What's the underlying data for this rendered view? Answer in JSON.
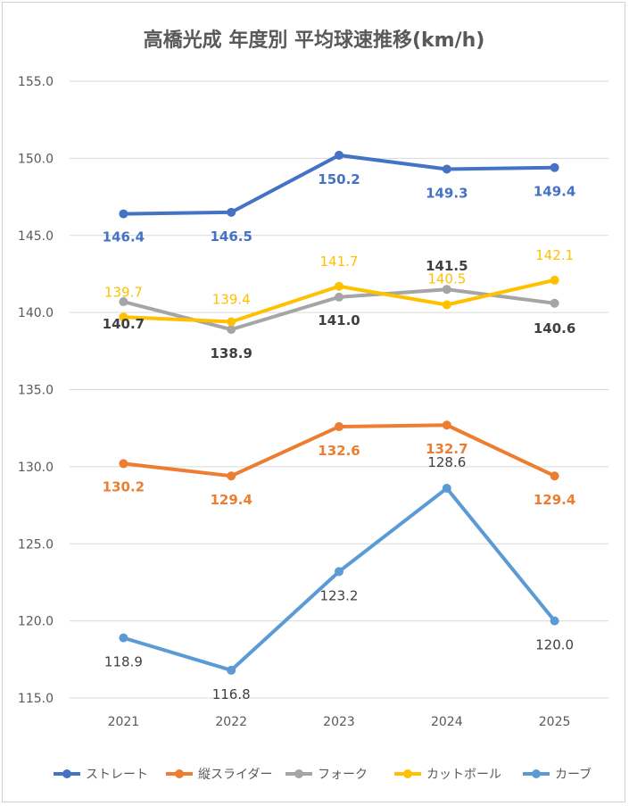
{
  "chart_data": {
    "type": "line",
    "title": "高橋光成 年度別 平均球速推移(km/h)",
    "categories": [
      "2021",
      "2022",
      "2023",
      "2024",
      "2025"
    ],
    "ylim": [
      115.0,
      155.0
    ],
    "yticks": [
      "115.0",
      "120.0",
      "125.0",
      "130.0",
      "135.0",
      "140.0",
      "145.0",
      "150.0",
      "155.0"
    ],
    "grid": true,
    "legend_position": "bottom",
    "series": [
      {
        "name": "ストレート",
        "color": "#4472C4",
        "values": [
          146.4,
          146.5,
          150.2,
          149.3,
          149.4
        ],
        "labels": [
          "146.4",
          "146.5",
          "150.2",
          "149.3",
          "149.4"
        ]
      },
      {
        "name": "縦スライダー",
        "color": "#ED7D31",
        "values": [
          130.2,
          129.4,
          132.6,
          132.7,
          129.4
        ],
        "labels": [
          "130.2",
          "129.4",
          "132.6",
          "132.7",
          "129.4"
        ]
      },
      {
        "name": "フォーク",
        "color": "#A5A5A5",
        "values": [
          140.7,
          138.9,
          141.0,
          141.5,
          140.6
        ],
        "labels": [
          "140.7",
          "138.9",
          "141.0",
          "141.5",
          "140.6"
        ]
      },
      {
        "name": "カットボール",
        "color": "#FFC000",
        "values": [
          139.7,
          139.4,
          141.7,
          140.5,
          142.1
        ],
        "labels": [
          "139.7",
          "139.4",
          "141.7",
          "140.5",
          "142.1"
        ]
      },
      {
        "name": "カーブ",
        "color": "#5B9BD5",
        "values": [
          118.9,
          116.8,
          123.2,
          128.6,
          120.0
        ],
        "labels": [
          "118.9",
          "116.8",
          "123.2",
          "128.6",
          "120.0"
        ]
      }
    ]
  }
}
